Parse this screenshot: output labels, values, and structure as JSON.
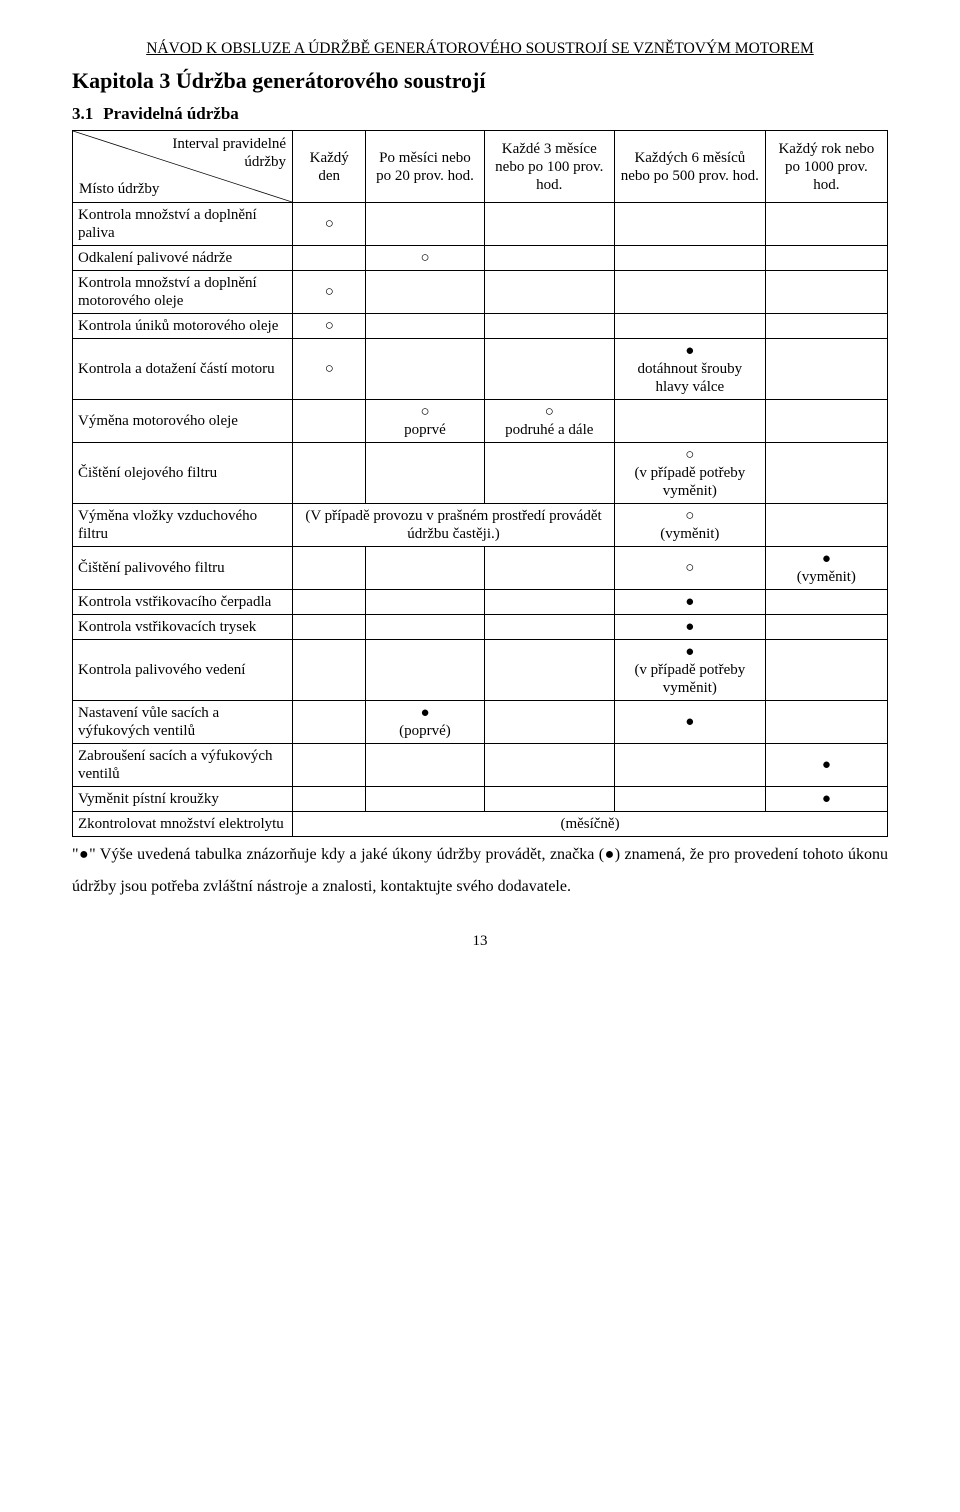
{
  "header": "NÁVOD K OBSLUZE A ÚDRŽBĚ GENERÁTOROVÉHO SOUSTROJÍ SE VZNĚTOVÝM MOTOREM",
  "chapter_title": "Kapitola 3 Údržba generátorového soustrojí",
  "section": {
    "num": "3.1",
    "title": "Pravidelná údržba"
  },
  "table": {
    "diag_top": "Interval pravidelné\n údržby",
    "diag_bottom": "Místo údržby",
    "cols": [
      "Každý den",
      "Po měsíci nebo po 20 prov. hod.",
      "Každé 3 měsíce nebo po 100 prov. hod.",
      "Každých 6 měsíců nebo po 500 prov. hod.",
      "Každý rok nebo po 1000 prov. hod."
    ],
    "rows": [
      {
        "label": "Kontrola množství a doplnění paliva",
        "cells": [
          "○",
          "",
          "",
          "",
          ""
        ]
      },
      {
        "label": "Odkalení palivové nádrže",
        "cells": [
          "",
          "○",
          "",
          "",
          ""
        ]
      },
      {
        "label": "Kontrola množství a doplnění motorového oleje",
        "cells": [
          "○",
          "",
          "",
          "",
          ""
        ]
      },
      {
        "label": "Kontrola úniků motorového oleje",
        "cells": [
          "○",
          "",
          "",
          "",
          ""
        ]
      },
      {
        "label": "Kontrola a dotažení částí motoru",
        "cells": [
          "○",
          "",
          "",
          "●\ndotáhnout šrouby hlavy válce",
          ""
        ]
      },
      {
        "label": "Výměna motorového oleje",
        "cells": [
          "",
          "○\npoprvé",
          "○\npodruhé a dále",
          "",
          ""
        ]
      },
      {
        "label": "Čištění olejového filtru",
        "cells": [
          "",
          "",
          "",
          "○\n(v případě potřeby vyměnit)",
          ""
        ]
      },
      {
        "label": "Výměna vložky vzduchového filtru",
        "span_cells": {
          "span_text": "(V případě provozu v prašném prostředí provádět údržbu častěji.)",
          "span_from": 1,
          "span_to": 3,
          "after": [
            "○\n(vyměnit)",
            ""
          ]
        }
      },
      {
        "label": "Čištění palivového filtru",
        "cells": [
          "",
          "",
          "",
          "○",
          "●\n(vyměnit)"
        ]
      },
      {
        "label": "Kontrola vstřikovacího čerpadla",
        "cells": [
          "",
          "",
          "",
          "●",
          ""
        ]
      },
      {
        "label": "Kontrola vstřikovacích trysek",
        "cells": [
          "",
          "",
          "",
          "●",
          ""
        ]
      },
      {
        "label": "Kontrola palivového vedení",
        "cells": [
          "",
          "",
          "",
          "●\n(v případě potřeby vyměnit)",
          ""
        ]
      },
      {
        "label": "Nastavení vůle sacích a výfukových ventilů",
        "cells": [
          "",
          "●\n(poprvé)",
          "",
          "●",
          ""
        ]
      },
      {
        "label": "Zabroušení sacích a výfukových ventilů",
        "cells": [
          "",
          "",
          "",
          "",
          "●"
        ]
      },
      {
        "label": "Vyměnit pístní kroužky",
        "cells": [
          "",
          "",
          "",
          "",
          "●"
        ]
      },
      {
        "label": "Zkontrolovat množství elektrolytu",
        "span_cells": {
          "span_text": "(měsíčně)",
          "span_from": 1,
          "span_to": 5,
          "after": []
        }
      }
    ]
  },
  "footnote": "\"●\" Výše uvedená tabulka znázorňuje kdy a jaké úkony údržby provádět, značka (●) znamená, že pro provedení tohoto úkonu údržby jsou potřeba zvláštní nástroje a znalosti, kontaktujte svého dodavatele.",
  "page_number": "13",
  "style": {
    "circle": "○",
    "dot": "●",
    "colors": {
      "text": "#000000",
      "bg": "#ffffff",
      "border": "#000000"
    }
  }
}
